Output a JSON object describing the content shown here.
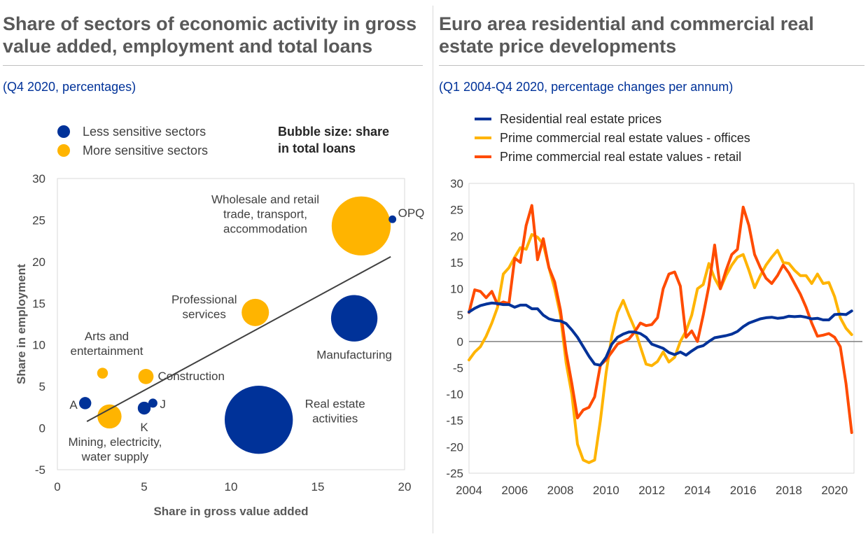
{
  "left_panel": {
    "title_line1": "Share of sectors of economic activity in gross",
    "title_line2": "value added, employment and total loans",
    "subtitle": "(Q4 2020, percentages)"
  },
  "right_panel": {
    "title_line1": "Euro area residential and commercial real",
    "title_line2": "estate price developments",
    "subtitle": "(Q1 2004-Q4 2020, percentage changes per annum)"
  },
  "colors": {
    "less_sensitive": "#003299",
    "more_sensitive": "#FFB400",
    "residential": "#003299",
    "offices": "#FFB400",
    "retail": "#FF4B00",
    "trend": "#404040"
  },
  "chart_data": [
    {
      "type": "scatter",
      "subtype": "bubble",
      "xlabel": "Share in gross value added",
      "ylabel": "Share in employment",
      "xlim": [
        0,
        20
      ],
      "ylim": [
        -5,
        30
      ],
      "xticks": [
        0,
        5,
        10,
        15,
        20
      ],
      "yticks": [
        -5,
        0,
        5,
        10,
        15,
        20,
        25,
        30
      ],
      "legend": [
        "Less sensitive sectors",
        "More sensitive sectors"
      ],
      "legend_position": "top-left",
      "bubble_note_line1": "Bubble size: share",
      "bubble_note_line2": "in total loans",
      "trendline": [
        [
          1.7,
          0.8
        ],
        [
          19.2,
          20.6
        ]
      ],
      "points": [
        {
          "label": "Wholesale and retail trade, transport, accommodation",
          "label_lines": [
            "Wholesale and retail",
            "trade, transport,",
            "accommodation"
          ],
          "group": "more",
          "x": 17.5,
          "y": 24.3,
          "size": 21
        },
        {
          "label": "OPQ",
          "label_lines": [
            "OPQ"
          ],
          "group": "less",
          "x": 19.3,
          "y": 25.1,
          "size": 0.35
        },
        {
          "label": "Professional services",
          "label_lines": [
            "Professional",
            "services"
          ],
          "group": "more",
          "x": 11.4,
          "y": 13.9,
          "size": 4.5
        },
        {
          "label": "Manufacturing",
          "label_lines": [
            "Manufacturing"
          ],
          "group": "less",
          "x": 17.1,
          "y": 13.2,
          "size": 13
        },
        {
          "label": "Arts and entertainment",
          "label_lines": [
            "Arts and",
            "entertainment"
          ],
          "group": "more",
          "x": 2.6,
          "y": 6.6,
          "size": 0.7
        },
        {
          "label": "Construction",
          "label_lines": [
            "Construction"
          ],
          "group": "more",
          "x": 5.1,
          "y": 6.2,
          "size": 1.4
        },
        {
          "label": "A",
          "label_lines": [
            "A"
          ],
          "group": "less",
          "x": 1.6,
          "y": 3.0,
          "size": 0.9
        },
        {
          "label": "J",
          "label_lines": [
            "J"
          ],
          "group": "less",
          "x": 5.5,
          "y": 3.0,
          "size": 0.5
        },
        {
          "label": "K",
          "label_lines": [
            "K"
          ],
          "group": "less",
          "x": 5.0,
          "y": 2.4,
          "size": 1.0
        },
        {
          "label": "Mining, electricity, water supply",
          "label_lines": [
            "Mining, electricity,",
            "water supply"
          ],
          "group": "more",
          "x": 3.0,
          "y": 1.4,
          "size": 3.5
        },
        {
          "label": "Real estate activities",
          "label_lines": [
            "Real estate",
            "activities"
          ],
          "group": "less",
          "x": 11.6,
          "y": 1.0,
          "size": 28
        }
      ]
    },
    {
      "type": "line",
      "xlim": [
        2004,
        2020.85
      ],
      "ylim": [
        -25,
        30
      ],
      "xticks": [
        2004,
        2006,
        2008,
        2010,
        2012,
        2014,
        2016,
        2018,
        2020
      ],
      "yticks": [
        -25,
        -20,
        -15,
        -10,
        -5,
        0,
        5,
        10,
        15,
        20,
        25,
        30
      ],
      "legend_position": "top-left",
      "series": [
        {
          "name": "Residential real estate prices",
          "color_key": "residential",
          "points": [
            [
              2004.0,
              5.6
            ],
            [
              2004.25,
              6.3
            ],
            [
              2004.5,
              6.8
            ],
            [
              2004.75,
              7.1
            ],
            [
              2005.0,
              7.3
            ],
            [
              2005.25,
              7.2
            ],
            [
              2005.5,
              7.0
            ],
            [
              2005.75,
              7.0
            ],
            [
              2006.0,
              6.5
            ],
            [
              2006.25,
              6.9
            ],
            [
              2006.5,
              6.9
            ],
            [
              2006.75,
              6.2
            ],
            [
              2007.0,
              6.2
            ],
            [
              2007.25,
              5.0
            ],
            [
              2007.5,
              4.3
            ],
            [
              2007.75,
              4.0
            ],
            [
              2008.0,
              3.9
            ],
            [
              2008.25,
              3.4
            ],
            [
              2008.5,
              2.2
            ],
            [
              2008.75,
              0.8
            ],
            [
              2009.0,
              -1.0
            ],
            [
              2009.25,
              -2.8
            ],
            [
              2009.5,
              -4.3
            ],
            [
              2009.75,
              -4.5
            ],
            [
              2010.0,
              -3.0
            ],
            [
              2010.25,
              -0.5
            ],
            [
              2010.5,
              0.8
            ],
            [
              2010.75,
              1.4
            ],
            [
              2011.0,
              1.8
            ],
            [
              2011.25,
              1.8
            ],
            [
              2011.5,
              1.5
            ],
            [
              2011.75,
              0.8
            ],
            [
              2012.0,
              -0.5
            ],
            [
              2012.25,
              -0.9
            ],
            [
              2012.5,
              -1.3
            ],
            [
              2012.75,
              -2.1
            ],
            [
              2013.0,
              -2.5
            ],
            [
              2013.25,
              -2.0
            ],
            [
              2013.5,
              -2.6
            ],
            [
              2013.75,
              -1.8
            ],
            [
              2014.0,
              -1.1
            ],
            [
              2014.25,
              -0.8
            ],
            [
              2014.5,
              0.0
            ],
            [
              2014.75,
              0.7
            ],
            [
              2015.0,
              0.9
            ],
            [
              2015.25,
              1.1
            ],
            [
              2015.5,
              1.4
            ],
            [
              2015.75,
              1.9
            ],
            [
              2016.0,
              2.8
            ],
            [
              2016.25,
              3.5
            ],
            [
              2016.5,
              3.9
            ],
            [
              2016.75,
              4.3
            ],
            [
              2017.0,
              4.5
            ],
            [
              2017.25,
              4.6
            ],
            [
              2017.5,
              4.4
            ],
            [
              2017.75,
              4.5
            ],
            [
              2018.0,
              4.8
            ],
            [
              2018.25,
              4.7
            ],
            [
              2018.5,
              4.8
            ],
            [
              2018.75,
              4.6
            ],
            [
              2019.0,
              4.3
            ],
            [
              2019.25,
              4.4
            ],
            [
              2019.5,
              4.1
            ],
            [
              2019.75,
              4.1
            ],
            [
              2020.0,
              5.1
            ],
            [
              2020.25,
              5.2
            ],
            [
              2020.5,
              5.1
            ],
            [
              2020.75,
              5.8
            ]
          ]
        },
        {
          "name": "Prime commercial real estate values - offices",
          "color_key": "offices",
          "points": [
            [
              2004.0,
              -3.5
            ],
            [
              2004.25,
              -2.0
            ],
            [
              2004.5,
              -1.0
            ],
            [
              2004.75,
              1.0
            ],
            [
              2005.0,
              3.5
            ],
            [
              2005.25,
              6.5
            ],
            [
              2005.5,
              12.8
            ],
            [
              2005.75,
              14.0
            ],
            [
              2006.0,
              16.0
            ],
            [
              2006.25,
              17.8
            ],
            [
              2006.5,
              17.5
            ],
            [
              2006.75,
              20.3
            ],
            [
              2007.0,
              19.8
            ],
            [
              2007.25,
              18.5
            ],
            [
              2007.5,
              14.0
            ],
            [
              2007.75,
              10.0
            ],
            [
              2008.0,
              5.0
            ],
            [
              2008.25,
              -4.0
            ],
            [
              2008.5,
              -10.0
            ],
            [
              2008.75,
              -19.5
            ],
            [
              2009.0,
              -22.5
            ],
            [
              2009.25,
              -23.0
            ],
            [
              2009.5,
              -22.5
            ],
            [
              2009.75,
              -15.0
            ],
            [
              2010.0,
              -6.0
            ],
            [
              2010.25,
              1.0
            ],
            [
              2010.5,
              5.5
            ],
            [
              2010.75,
              7.8
            ],
            [
              2011.0,
              5.0
            ],
            [
              2011.25,
              2.5
            ],
            [
              2011.5,
              -1.0
            ],
            [
              2011.75,
              -4.3
            ],
            [
              2012.0,
              -4.6
            ],
            [
              2012.25,
              -3.8
            ],
            [
              2012.5,
              -2.0
            ],
            [
              2012.75,
              -3.9
            ],
            [
              2013.0,
              -3.0
            ],
            [
              2013.25,
              0.0
            ],
            [
              2013.5,
              2.0
            ],
            [
              2013.75,
              5.0
            ],
            [
              2014.0,
              10.0
            ],
            [
              2014.25,
              10.8
            ],
            [
              2014.5,
              14.8
            ],
            [
              2014.75,
              12.0
            ],
            [
              2015.0,
              10.0
            ],
            [
              2015.25,
              12.5
            ],
            [
              2015.5,
              14.5
            ],
            [
              2015.75,
              16.0
            ],
            [
              2016.0,
              16.5
            ],
            [
              2016.25,
              13.5
            ],
            [
              2016.5,
              10.2
            ],
            [
              2016.75,
              12.5
            ],
            [
              2017.0,
              14.5
            ],
            [
              2017.25,
              16.0
            ],
            [
              2017.5,
              17.3
            ],
            [
              2017.75,
              15.0
            ],
            [
              2018.0,
              14.8
            ],
            [
              2018.25,
              13.5
            ],
            [
              2018.5,
              12.5
            ],
            [
              2018.75,
              12.5
            ],
            [
              2019.0,
              11.0
            ],
            [
              2019.25,
              12.8
            ],
            [
              2019.5,
              11.0
            ],
            [
              2019.75,
              11.2
            ],
            [
              2020.0,
              8.5
            ],
            [
              2020.25,
              4.5
            ],
            [
              2020.5,
              2.5
            ],
            [
              2020.75,
              1.3
            ]
          ]
        },
        {
          "name": "Prime commercial real estate values - retail",
          "color_key": "retail",
          "points": [
            [
              2004.0,
              5.5
            ],
            [
              2004.25,
              9.8
            ],
            [
              2004.5,
              9.5
            ],
            [
              2004.75,
              8.3
            ],
            [
              2005.0,
              9.5
            ],
            [
              2005.25,
              7.0
            ],
            [
              2005.5,
              7.5
            ],
            [
              2005.75,
              7.2
            ],
            [
              2006.0,
              15.8
            ],
            [
              2006.25,
              15.0
            ],
            [
              2006.5,
              22.0
            ],
            [
              2006.75,
              25.8
            ],
            [
              2007.0,
              15.5
            ],
            [
              2007.25,
              19.5
            ],
            [
              2007.5,
              14.0
            ],
            [
              2007.75,
              11.3
            ],
            [
              2008.0,
              6.0
            ],
            [
              2008.25,
              -2.0
            ],
            [
              2008.5,
              -8.0
            ],
            [
              2008.75,
              -14.5
            ],
            [
              2009.0,
              -13.0
            ],
            [
              2009.25,
              -12.5
            ],
            [
              2009.5,
              -10.5
            ],
            [
              2009.75,
              -4.5
            ],
            [
              2010.0,
              -3.5
            ],
            [
              2010.25,
              -2.0
            ],
            [
              2010.5,
              -0.5
            ],
            [
              2010.75,
              0.0
            ],
            [
              2011.0,
              0.5
            ],
            [
              2011.25,
              1.8
            ],
            [
              2011.5,
              3.5
            ],
            [
              2011.75,
              3.0
            ],
            [
              2012.0,
              3.2
            ],
            [
              2012.25,
              4.5
            ],
            [
              2012.5,
              10.0
            ],
            [
              2012.75,
              12.8
            ],
            [
              2013.0,
              13.2
            ],
            [
              2013.25,
              10.5
            ],
            [
              2013.5,
              0.8
            ],
            [
              2013.75,
              2.0
            ],
            [
              2014.0,
              0.0
            ],
            [
              2014.25,
              5.0
            ],
            [
              2014.5,
              10.5
            ],
            [
              2014.75,
              18.3
            ],
            [
              2015.0,
              10.0
            ],
            [
              2015.25,
              13.5
            ],
            [
              2015.5,
              16.5
            ],
            [
              2015.75,
              17.5
            ],
            [
              2016.0,
              25.5
            ],
            [
              2016.25,
              22.0
            ],
            [
              2016.5,
              16.5
            ],
            [
              2016.75,
              14.0
            ],
            [
              2017.0,
              12.0
            ],
            [
              2017.25,
              11.0
            ],
            [
              2017.5,
              12.5
            ],
            [
              2017.75,
              14.5
            ],
            [
              2018.0,
              13.0
            ],
            [
              2018.25,
              11.0
            ],
            [
              2018.5,
              9.0
            ],
            [
              2018.75,
              6.5
            ],
            [
              2019.0,
              3.5
            ],
            [
              2019.25,
              1.0
            ],
            [
              2019.5,
              1.2
            ],
            [
              2019.75,
              1.5
            ],
            [
              2020.0,
              0.8
            ],
            [
              2020.25,
              -1.0
            ],
            [
              2020.5,
              -8.0
            ],
            [
              2020.75,
              -17.3
            ]
          ]
        }
      ]
    }
  ]
}
